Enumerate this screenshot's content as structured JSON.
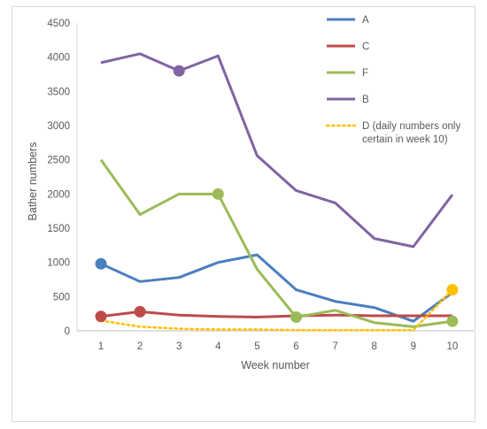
{
  "chart_data": {
    "type": "line",
    "title": "",
    "xlabel": "Week number",
    "ylabel": "Bather numbers",
    "x": [
      1,
      2,
      3,
      4,
      5,
      6,
      7,
      8,
      9,
      10
    ],
    "xlim": [
      1,
      10
    ],
    "ylim": [
      0,
      4500
    ],
    "yticks": [
      0,
      500,
      1000,
      1500,
      2000,
      2500,
      3000,
      3500,
      4000,
      4500
    ],
    "grid": false,
    "legend_position": "top-right",
    "series": [
      {
        "name": "A",
        "color": "#4a7ebf",
        "style": "solid",
        "values": [
          980,
          720,
          780,
          1000,
          1110,
          600,
          430,
          340,
          140,
          560
        ],
        "markers": [
          1
        ]
      },
      {
        "name": "C",
        "color": "#be4b48",
        "style": "solid",
        "values": [
          210,
          280,
          230,
          210,
          200,
          220,
          230,
          220,
          220,
          220
        ],
        "markers": [
          1,
          2
        ]
      },
      {
        "name": "F",
        "color": "#9bbb59",
        "style": "solid",
        "values": [
          2500,
          1700,
          2000,
          2000,
          900,
          200,
          300,
          120,
          60,
          140
        ],
        "markers": [
          4,
          6,
          10
        ]
      },
      {
        "name": "B",
        "color": "#8064a2",
        "style": "solid",
        "values": [
          3920,
          4050,
          3800,
          4020,
          2560,
          2050,
          1870,
          1350,
          1230,
          1990
        ],
        "markers": [
          3
        ]
      },
      {
        "name": "D (daily numbers only certain in week 10)",
        "color": "#ffc000",
        "style": "dotted",
        "values": [
          150,
          60,
          30,
          20,
          20,
          10,
          10,
          10,
          10,
          600
        ],
        "markers": [
          10
        ]
      }
    ]
  }
}
